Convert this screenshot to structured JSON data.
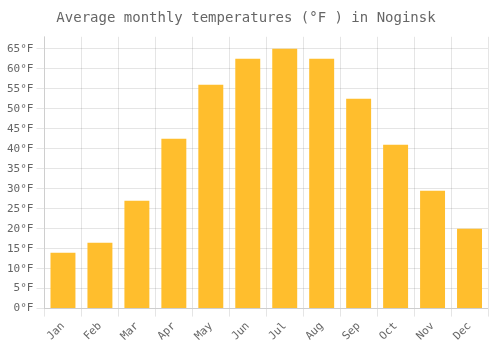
{
  "chart_data": {
    "type": "bar",
    "title": "Average monthly temperatures (°F ) in Noginsk",
    "categories": [
      "Jan",
      "Feb",
      "Mar",
      "Apr",
      "May",
      "Jun",
      "Jul",
      "Aug",
      "Sep",
      "Oct",
      "Nov",
      "Dec"
    ],
    "values": [
      14,
      16.5,
      27,
      42.5,
      56,
      62.5,
      65,
      62.5,
      52.5,
      41,
      29.5,
      20
    ],
    "color": "#FFBE2D",
    "ylim": [
      0,
      68
    ],
    "yticks": [
      {
        "value": 0,
        "label": "0°F"
      },
      {
        "value": 5,
        "label": "5°F"
      },
      {
        "value": 10,
        "label": "10°F"
      },
      {
        "value": 15,
        "label": "15°F"
      },
      {
        "value": 20,
        "label": "20°F"
      },
      {
        "value": 25,
        "label": "25°F"
      },
      {
        "value": 30,
        "label": "30°F"
      },
      {
        "value": 35,
        "label": "35°F"
      },
      {
        "value": 40,
        "label": "40°F"
      },
      {
        "value": 45,
        "label": "45°F"
      },
      {
        "value": 50,
        "label": "50°F"
      },
      {
        "value": 55,
        "label": "55°F"
      },
      {
        "value": 60,
        "label": "60°F"
      },
      {
        "value": 65,
        "label": "65°F"
      }
    ],
    "grid": true
  }
}
